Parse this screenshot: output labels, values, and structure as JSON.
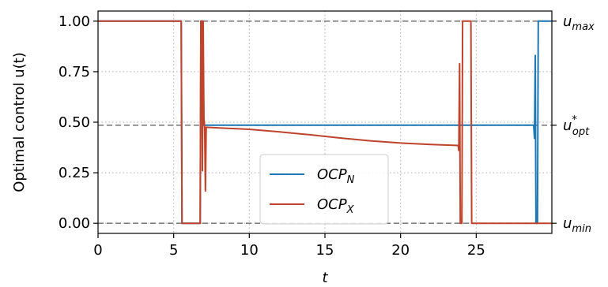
{
  "chart_data": {
    "type": "line",
    "xlabel": "t",
    "ylabel": "Optimal control u(t)",
    "xlim": [
      0,
      30
    ],
    "ylim": [
      -0.05,
      1.05
    ],
    "x_ticks": [
      0,
      5,
      10,
      15,
      20,
      25
    ],
    "y_ticks": [
      0.0,
      0.25,
      0.5,
      0.75,
      1.0
    ],
    "x_tick_labels": [
      "0",
      "5",
      "10",
      "15",
      "20",
      "25"
    ],
    "y_tick_labels": [
      "0.00",
      "0.25",
      "0.50",
      "0.75",
      "1.00"
    ],
    "grid": "dotted",
    "legend_position": "lower-center",
    "reference_lines": [
      {
        "value": 1.0,
        "label": "u",
        "sub": "max",
        "sup": ""
      },
      {
        "value": 0.485,
        "label": "u",
        "sub": "opt",
        "sup": "*"
      },
      {
        "value": 0.0,
        "label": "u",
        "sub": "min",
        "sup": ""
      }
    ],
    "series": [
      {
        "name": "OCP",
        "name_sub": "N",
        "color": "#1f77b4",
        "points": [
          [
            0,
            1.0
          ],
          [
            5.5,
            1.0
          ],
          [
            5.55,
            0.0
          ],
          [
            6.75,
            0.0
          ],
          [
            6.8,
            1.0
          ],
          [
            6.92,
            1.0
          ],
          [
            7.0,
            0.485
          ],
          [
            28.8,
            0.485
          ],
          [
            28.85,
            0.42
          ],
          [
            28.9,
            0.83
          ],
          [
            28.95,
            0.0
          ],
          [
            29.05,
            0.0
          ],
          [
            29.1,
            1.0
          ],
          [
            30,
            1.0
          ]
        ]
      },
      {
        "name": "OCP",
        "name_sub": "X",
        "color": "#c0432c",
        "points": [
          [
            0,
            1.0
          ],
          [
            5.5,
            1.0
          ],
          [
            5.55,
            0.0
          ],
          [
            6.75,
            0.0
          ],
          [
            6.8,
            1.0
          ],
          [
            6.85,
            1.0
          ],
          [
            6.9,
            0.26
          ],
          [
            6.95,
            1.0
          ],
          [
            7.0,
            0.52
          ],
          [
            7.05,
            0.47
          ],
          [
            7.1,
            0.16
          ],
          [
            7.15,
            0.475
          ],
          [
            8,
            0.472
          ],
          [
            10,
            0.465
          ],
          [
            12,
            0.452
          ],
          [
            14,
            0.438
          ],
          [
            16,
            0.422
          ],
          [
            18,
            0.408
          ],
          [
            20,
            0.397
          ],
          [
            22,
            0.39
          ],
          [
            23.8,
            0.385
          ],
          [
            23.85,
            0.36
          ],
          [
            23.9,
            0.79
          ],
          [
            23.95,
            0.0
          ],
          [
            24.05,
            0.0
          ],
          [
            24.1,
            1.0
          ],
          [
            24.65,
            1.0
          ],
          [
            24.7,
            0.0
          ],
          [
            30,
            0.0
          ]
        ]
      }
    ]
  }
}
